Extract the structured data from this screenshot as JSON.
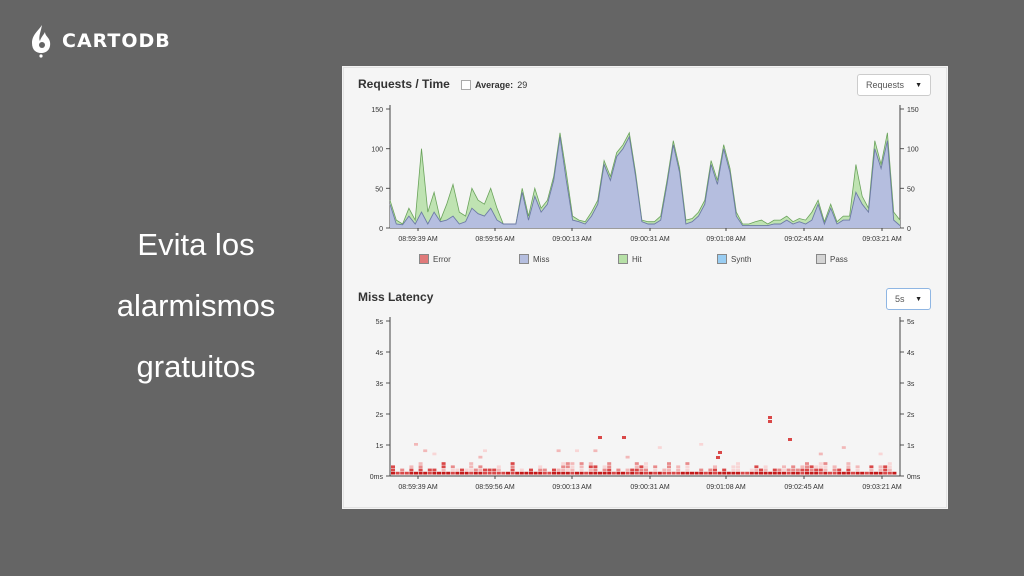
{
  "logo": {
    "text": "CARTODB"
  },
  "slide": {
    "lines": [
      "Evita los",
      "alarmismos",
      "gratuitos"
    ]
  },
  "requests": {
    "title": "Requests / Time",
    "average_label": "Average:",
    "average_value": "29",
    "select_value": "Requests",
    "y_ticks": [
      "150",
      "100",
      "50",
      "0"
    ],
    "x_labels": [
      "08:59:39 AM",
      "08:59:56 AM",
      "09:00:13 AM",
      "09:00:31 AM",
      "09:01:08 AM",
      "09:02:45 AM",
      "09:03:21 AM"
    ],
    "legend": [
      {
        "name": "Error",
        "color": "#e07a7a"
      },
      {
        "name": "Miss",
        "color": "#b5bedf"
      },
      {
        "name": "Hit",
        "color": "#b6e0a6"
      },
      {
        "name": "Synth",
        "color": "#99cdf2"
      },
      {
        "name": "Pass",
        "color": "#d4d4d4"
      }
    ],
    "colors": {
      "miss_fill": "#b5bedf",
      "miss_line": "#6d7ba5",
      "hit_fill": "#bfe3b2",
      "hit_line": "#6aa35b"
    }
  },
  "latency": {
    "title": "Miss Latency",
    "select_value": "5s",
    "y_ticks": [
      "5s",
      "4s",
      "3s",
      "2s",
      "1s",
      "0ms"
    ],
    "x_labels": [
      "08:59:39 AM",
      "08:59:56 AM",
      "09:00:13 AM",
      "09:00:31 AM",
      "09:01:08 AM",
      "09:02:45 AM",
      "09:03:21 AM"
    ]
  },
  "chart_data": [
    {
      "type": "area",
      "title": "Requests / Time",
      "ylim": [
        0,
        150
      ],
      "x_ticks": [
        "08:59:39 AM",
        "08:59:56 AM",
        "09:00:13 AM",
        "09:00:31 AM",
        "09:01:08 AM",
        "09:02:45 AM",
        "09:03:21 AM"
      ],
      "legend": [
        "Error",
        "Miss",
        "Hit",
        "Synth",
        "Pass"
      ],
      "series": [
        {
          "name": "Miss",
          "values": [
            30,
            5,
            4,
            15,
            5,
            20,
            5,
            20,
            8,
            10,
            15,
            5,
            8,
            25,
            18,
            15,
            25,
            10,
            5,
            5,
            5,
            45,
            10,
            40,
            20,
            30,
            60,
            115,
            60,
            10,
            8,
            5,
            15,
            30,
            80,
            60,
            90,
            100,
            115,
            65,
            8,
            5,
            5,
            10,
            55,
            105,
            70,
            5,
            8,
            15,
            30,
            80,
            55,
            100,
            70,
            15,
            3,
            3,
            3,
            3,
            3,
            5,
            5,
            10,
            5,
            8,
            5,
            10,
            30,
            5,
            25,
            5,
            10,
            10,
            45,
            30,
            20,
            100,
            75,
            110,
            10,
            3
          ]
        },
        {
          "name": "Hit",
          "values": [
            35,
            10,
            5,
            25,
            10,
            100,
            20,
            45,
            10,
            30,
            55,
            20,
            15,
            50,
            35,
            30,
            50,
            25,
            5,
            5,
            5,
            50,
            15,
            50,
            25,
            35,
            65,
            120,
            70,
            15,
            10,
            8,
            20,
            35,
            85,
            65,
            95,
            105,
            120,
            70,
            10,
            8,
            8,
            15,
            60,
            110,
            75,
            10,
            12,
            20,
            35,
            85,
            60,
            105,
            75,
            20,
            5,
            5,
            8,
            10,
            5,
            10,
            10,
            15,
            8,
            12,
            10,
            20,
            35,
            8,
            30,
            8,
            15,
            15,
            80,
            40,
            25,
            110,
            80,
            120,
            20,
            10
          ]
        }
      ]
    },
    {
      "type": "heatmap",
      "title": "Miss Latency",
      "y_ticks": [
        "5s",
        "4s",
        "3s",
        "2s",
        "1s",
        "0ms"
      ],
      "x_ticks": [
        "08:59:39 AM",
        "08:59:56 AM",
        "09:00:13 AM",
        "09:00:31 AM",
        "09:01:08 AM",
        "09:02:45 AM",
        "09:03:21 AM"
      ]
    }
  ]
}
